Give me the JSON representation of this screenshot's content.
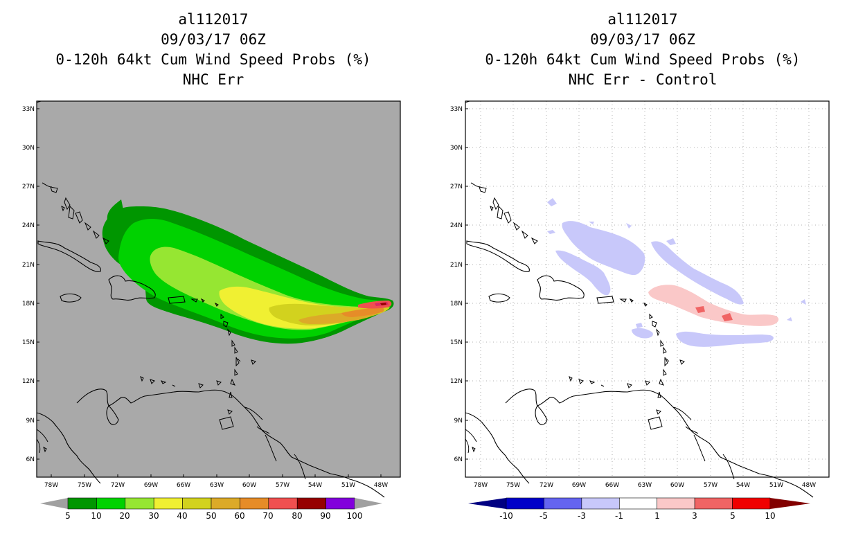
{
  "left": {
    "title_lines": [
      "al112017",
      "09/03/17 06Z",
      "0-120h 64kt Cum Wind Speed Probs (%)",
      "NHC Err"
    ],
    "colorbar": {
      "labels": [
        "5",
        "10",
        "20",
        "30",
        "40",
        "50",
        "60",
        "70",
        "80",
        "90",
        "100"
      ],
      "colors": [
        "#009600",
        "#00d200",
        "#96e632",
        "#f0f032",
        "#d2d21e",
        "#dcaa28",
        "#e68c28",
        "#f05050",
        "#960000",
        "#8200dc"
      ],
      "arrow_color": "#a0a0a0"
    },
    "background_color": "#a9a9a9"
  },
  "right": {
    "title_lines": [
      "al112017",
      "09/03/17 06Z",
      "0-120h 64kt Cum Wind Speed Probs (%)",
      "NHC Err - Control"
    ],
    "colorbar": {
      "labels": [
        "-10",
        "-5",
        "-3",
        "-1",
        "1",
        "3",
        "5",
        "10"
      ],
      "colors": [
        "#0000c8",
        "#6464f0",
        "#c8c8fa",
        "#ffffff",
        "#fac8c8",
        "#f06464",
        "#f00000"
      ],
      "low_arrow_color": "#000082",
      "high_arrow_color": "#820000"
    },
    "background_color": "#ffffff"
  },
  "axes": {
    "lat_labels": [
      "33N",
      "30N",
      "27N",
      "24N",
      "21N",
      "18N",
      "15N",
      "12N",
      "9N",
      "6N"
    ],
    "lon_labels": [
      "78W",
      "75W",
      "72W",
      "69W",
      "66W",
      "63W",
      "60W",
      "57W",
      "54W",
      "51W",
      "48W"
    ]
  }
}
